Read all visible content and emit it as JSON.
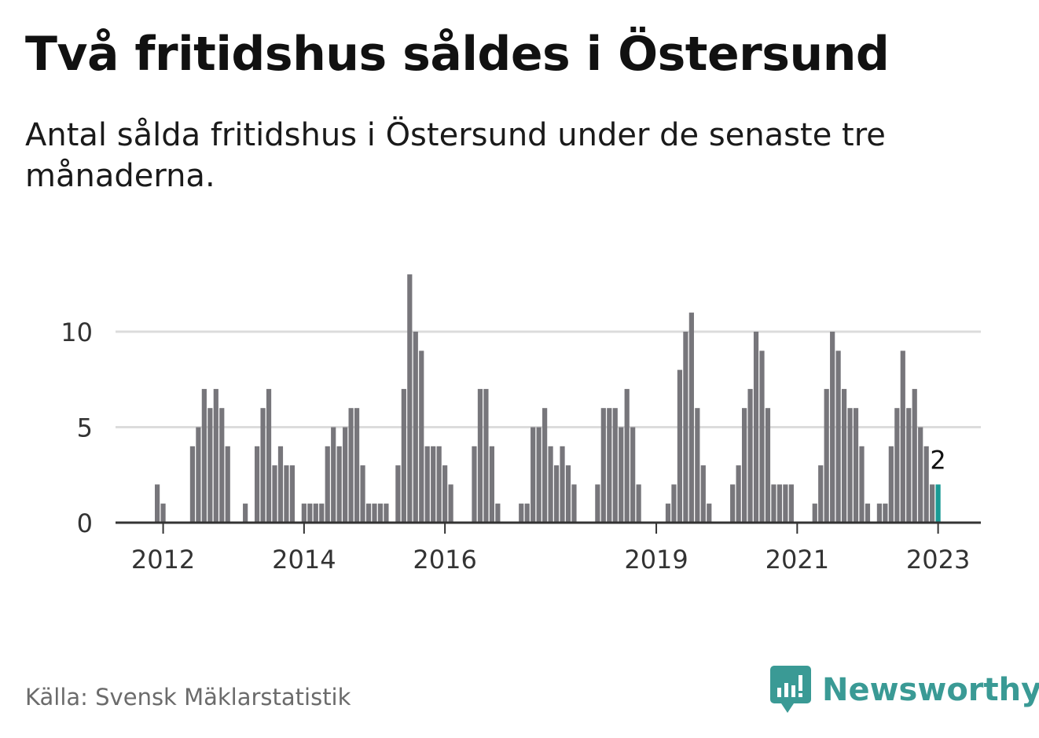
{
  "header": {
    "title": "Två fritidshus såldes i Östersund",
    "subtitle": "Antal sålda fritidshus i Östersund under de senaste tre månaderna."
  },
  "footer": {
    "source": "Källa: Svensk Mäklarstatistik",
    "brand": "Newsworthy"
  },
  "colors": {
    "bar": "#77767b",
    "highlight": "#1a9a95",
    "grid": "#dcdcdc",
    "axis": "#333333",
    "brand": "#3a9a95"
  },
  "chart_data": {
    "type": "bar",
    "xlabel": "",
    "ylabel": "",
    "ylim": [
      0,
      13
    ],
    "yticks": [
      0,
      5,
      10
    ],
    "grid": true,
    "x_start": "2011-11",
    "x_end": "2023-02",
    "xticks": [
      {
        "label": "2012",
        "x": "2012-01"
      },
      {
        "label": "2014",
        "x": "2014-01"
      },
      {
        "label": "2016",
        "x": "2016-01"
      },
      {
        "label": "2019",
        "x": "2019-01"
      },
      {
        "label": "2021",
        "x": "2021-01"
      },
      {
        "label": "2023",
        "x": "2023-01"
      }
    ],
    "series": [
      {
        "values": [
          {
            "x": "2011-12",
            "y": 2
          },
          {
            "x": "2012-01",
            "y": 1
          },
          {
            "x": "2012-06",
            "y": 4
          },
          {
            "x": "2012-07",
            "y": 5
          },
          {
            "x": "2012-08",
            "y": 7
          },
          {
            "x": "2012-09",
            "y": 6
          },
          {
            "x": "2012-10",
            "y": 7
          },
          {
            "x": "2012-11",
            "y": 6
          },
          {
            "x": "2012-12",
            "y": 4
          },
          {
            "x": "2013-03",
            "y": 1
          },
          {
            "x": "2013-05",
            "y": 4
          },
          {
            "x": "2013-06",
            "y": 6
          },
          {
            "x": "2013-07",
            "y": 7
          },
          {
            "x": "2013-08",
            "y": 3
          },
          {
            "x": "2013-09",
            "y": 4
          },
          {
            "x": "2013-10",
            "y": 3
          },
          {
            "x": "2013-11",
            "y": 3
          },
          {
            "x": "2014-01",
            "y": 1
          },
          {
            "x": "2014-02",
            "y": 1
          },
          {
            "x": "2014-03",
            "y": 1
          },
          {
            "x": "2014-04",
            "y": 1
          },
          {
            "x": "2014-05",
            "y": 4
          },
          {
            "x": "2014-06",
            "y": 5
          },
          {
            "x": "2014-07",
            "y": 4
          },
          {
            "x": "2014-08",
            "y": 5
          },
          {
            "x": "2014-09",
            "y": 6
          },
          {
            "x": "2014-10",
            "y": 6
          },
          {
            "x": "2014-11",
            "y": 3
          },
          {
            "x": "2014-12",
            "y": 1
          },
          {
            "x": "2015-01",
            "y": 1
          },
          {
            "x": "2015-02",
            "y": 1
          },
          {
            "x": "2015-03",
            "y": 1
          },
          {
            "x": "2015-05",
            "y": 3
          },
          {
            "x": "2015-06",
            "y": 7
          },
          {
            "x": "2015-07",
            "y": 13
          },
          {
            "x": "2015-08",
            "y": 10
          },
          {
            "x": "2015-09",
            "y": 9
          },
          {
            "x": "2015-10",
            "y": 4
          },
          {
            "x": "2015-11",
            "y": 4
          },
          {
            "x": "2015-12",
            "y": 4
          },
          {
            "x": "2016-01",
            "y": 3
          },
          {
            "x": "2016-02",
            "y": 2
          },
          {
            "x": "2016-06",
            "y": 4
          },
          {
            "x": "2016-07",
            "y": 7
          },
          {
            "x": "2016-08",
            "y": 7
          },
          {
            "x": "2016-09",
            "y": 4
          },
          {
            "x": "2016-10",
            "y": 1
          },
          {
            "x": "2017-02",
            "y": 1
          },
          {
            "x": "2017-03",
            "y": 1
          },
          {
            "x": "2017-04",
            "y": 5
          },
          {
            "x": "2017-05",
            "y": 5
          },
          {
            "x": "2017-06",
            "y": 6
          },
          {
            "x": "2017-07",
            "y": 4
          },
          {
            "x": "2017-08",
            "y": 3
          },
          {
            "x": "2017-09",
            "y": 4
          },
          {
            "x": "2017-10",
            "y": 3
          },
          {
            "x": "2017-11",
            "y": 2
          },
          {
            "x": "2018-03",
            "y": 2
          },
          {
            "x": "2018-04",
            "y": 6
          },
          {
            "x": "2018-05",
            "y": 6
          },
          {
            "x": "2018-06",
            "y": 6
          },
          {
            "x": "2018-07",
            "y": 5
          },
          {
            "x": "2018-08",
            "y": 7
          },
          {
            "x": "2018-09",
            "y": 5
          },
          {
            "x": "2018-10",
            "y": 2
          },
          {
            "x": "2019-03",
            "y": 1
          },
          {
            "x": "2019-04",
            "y": 2
          },
          {
            "x": "2019-05",
            "y": 8
          },
          {
            "x": "2019-06",
            "y": 10
          },
          {
            "x": "2019-07",
            "y": 11
          },
          {
            "x": "2019-08",
            "y": 6
          },
          {
            "x": "2019-09",
            "y": 3
          },
          {
            "x": "2019-10",
            "y": 1
          },
          {
            "x": "2020-02",
            "y": 2
          },
          {
            "x": "2020-03",
            "y": 3
          },
          {
            "x": "2020-04",
            "y": 6
          },
          {
            "x": "2020-05",
            "y": 7
          },
          {
            "x": "2020-06",
            "y": 10
          },
          {
            "x": "2020-07",
            "y": 9
          },
          {
            "x": "2020-08",
            "y": 6
          },
          {
            "x": "2020-09",
            "y": 2
          },
          {
            "x": "2020-10",
            "y": 2
          },
          {
            "x": "2020-11",
            "y": 2
          },
          {
            "x": "2020-12",
            "y": 2
          },
          {
            "x": "2021-04",
            "y": 1
          },
          {
            "x": "2021-05",
            "y": 3
          },
          {
            "x": "2021-06",
            "y": 7
          },
          {
            "x": "2021-07",
            "y": 10
          },
          {
            "x": "2021-08",
            "y": 9
          },
          {
            "x": "2021-09",
            "y": 7
          },
          {
            "x": "2021-10",
            "y": 6
          },
          {
            "x": "2021-11",
            "y": 6
          },
          {
            "x": "2021-12",
            "y": 4
          },
          {
            "x": "2022-01",
            "y": 1
          },
          {
            "x": "2022-03",
            "y": 1
          },
          {
            "x": "2022-04",
            "y": 1
          },
          {
            "x": "2022-05",
            "y": 4
          },
          {
            "x": "2022-06",
            "y": 6
          },
          {
            "x": "2022-07",
            "y": 9
          },
          {
            "x": "2022-08",
            "y": 6
          },
          {
            "x": "2022-09",
            "y": 7
          },
          {
            "x": "2022-10",
            "y": 5
          },
          {
            "x": "2022-11",
            "y": 4
          },
          {
            "x": "2022-12",
            "y": 2
          },
          {
            "x": "2023-01",
            "y": 2
          }
        ]
      }
    ],
    "highlight": {
      "x": "2023-01",
      "label": "2"
    }
  }
}
